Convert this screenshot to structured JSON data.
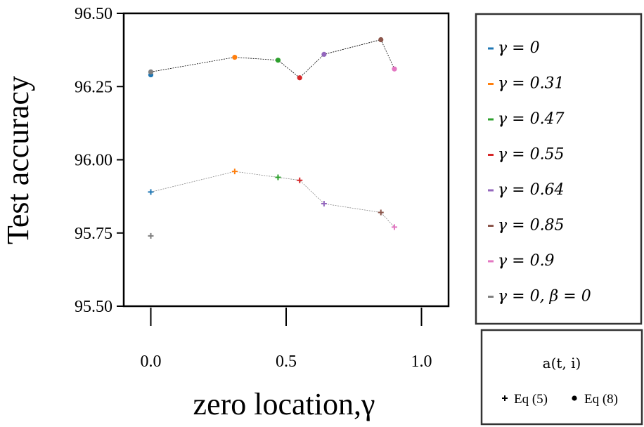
{
  "chart_data": {
    "type": "scatter",
    "xlabel": "zero location,γ",
    "ylabel": "Test accuracy",
    "xlim": [
      -0.1,
      1.1
    ],
    "ylim": [
      95.5,
      96.5
    ],
    "xticks": [
      0.0,
      0.5,
      1.0
    ],
    "xtick_labels": [
      "0.0",
      "0.5",
      "1.0"
    ],
    "yticks": [
      95.5,
      95.75,
      96.0,
      96.25,
      96.5
    ],
    "ytick_labels": [
      "95.50",
      "95.75",
      "96.00",
      "96.25",
      "96.50"
    ],
    "grid": false,
    "series": [
      {
        "name": "γ = 0",
        "color": "#1f77b4",
        "points": [
          {
            "x": 0.0,
            "eq8": 96.29,
            "eq5": 95.89
          }
        ]
      },
      {
        "name": "γ = 0.31",
        "color": "#ff7f0e",
        "points": [
          {
            "x": 0.31,
            "eq8": 96.35,
            "eq5": 95.96
          }
        ]
      },
      {
        "name": "γ = 0.47",
        "color": "#2ca02c",
        "points": [
          {
            "x": 0.47,
            "eq8": 96.34,
            "eq5": 95.94
          }
        ]
      },
      {
        "name": "γ = 0.55",
        "color": "#d62728",
        "points": [
          {
            "x": 0.55,
            "eq8": 96.28,
            "eq5": 95.93
          }
        ]
      },
      {
        "name": "γ = 0.64",
        "color": "#9467bd",
        "points": [
          {
            "x": 0.64,
            "eq8": 96.36,
            "eq5": 95.85
          }
        ]
      },
      {
        "name": "γ = 0.85",
        "color": "#8c564b",
        "points": [
          {
            "x": 0.85,
            "eq8": 96.41,
            "eq5": 95.82
          }
        ]
      },
      {
        "name": "γ = 0.9",
        "color": "#e377c2",
        "points": [
          {
            "x": 0.9,
            "eq8": 96.31,
            "eq5": 95.77
          }
        ]
      },
      {
        "name": "γ = 0, β = 0",
        "color": "#7f7f7f",
        "points": [
          {
            "x": 0.0,
            "eq8": 96.3,
            "eq5": 95.74
          }
        ]
      }
    ],
    "connector_lines": [
      {
        "name": "eq8-line",
        "color": "#000000",
        "x": [
          0.0,
          0.31,
          0.47,
          0.55,
          0.64,
          0.85,
          0.9
        ],
        "y": [
          96.3,
          96.35,
          96.34,
          96.28,
          96.36,
          96.41,
          96.31
        ]
      },
      {
        "name": "eq5-line",
        "color": "#888888",
        "x": [
          0.0,
          0.31,
          0.47,
          0.55,
          0.64,
          0.85,
          0.9
        ],
        "y": [
          95.89,
          95.96,
          95.94,
          95.93,
          95.85,
          95.82,
          95.77
        ]
      }
    ],
    "legend": {
      "placement": "right",
      "labels": [
        "γ = 0",
        "γ = 0.31",
        "γ = 0.47",
        "γ = 0.55",
        "γ = 0.64",
        "γ = 0.85",
        "γ = 0.9",
        "γ = 0, β = 0"
      ]
    },
    "marker_legend": {
      "title": "a(t, i)",
      "entries": [
        {
          "marker": "+",
          "label": "Eq (5)"
        },
        {
          "marker": "•",
          "label": "Eq (8)"
        }
      ]
    }
  }
}
